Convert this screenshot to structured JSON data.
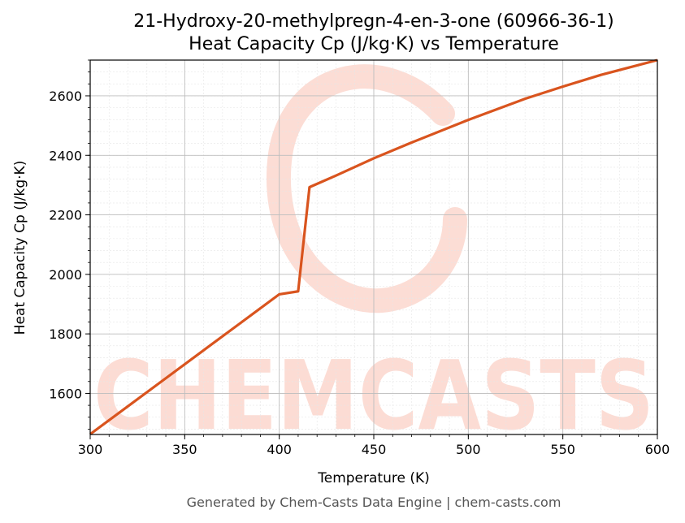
{
  "chart_data": {
    "type": "line",
    "title": "21-Hydroxy-20-methylpregn-4-en-3-one (60966-36-1)",
    "subtitle": "Heat Capacity Cp (J/kg·K) vs Temperature",
    "xlabel": "Temperature (K)",
    "ylabel": "Heat Capacity Cp (J/kg·K)",
    "xlim": [
      300,
      600
    ],
    "ylim": [
      1462,
      2720
    ],
    "xticks": [
      300,
      350,
      400,
      450,
      500,
      550,
      600
    ],
    "yticks": [
      1600,
      1800,
      2000,
      2200,
      2400,
      2600
    ],
    "grid": true,
    "series": [
      {
        "color": "#d9541e",
        "x": [
          300,
          320,
          340,
          360,
          380,
          400,
          410,
          416,
          430,
          450,
          470,
          500,
          530,
          550,
          570,
          600
        ],
        "y": [
          1463,
          1557,
          1651,
          1745,
          1839,
          1933,
          1943,
          2293,
          2332,
          2390,
          2443,
          2519,
          2590,
          2631,
          2670,
          2720
        ]
      }
    ]
  },
  "watermark": "CHEMCASTS",
  "footer": "Generated by Chem-Casts Data Engine | chem-casts.com"
}
